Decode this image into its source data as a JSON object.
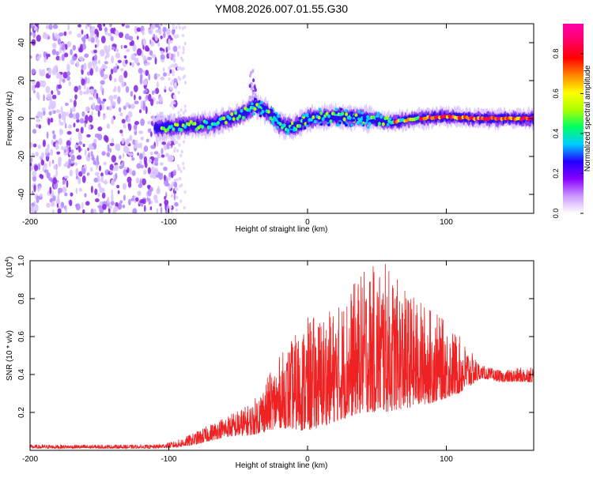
{
  "title": "YM08.2026.007.01.55.G30",
  "chart_data": [
    {
      "type": "heatmap",
      "name": "spectrogram",
      "xlabel": "Height of straight line (km)",
      "ylabel": "Frequency (Hz)",
      "xlim": [
        -200,
        163
      ],
      "ylim": [
        -50,
        50
      ],
      "xticks": [
        "-200",
        "-100",
        "0",
        "100"
      ],
      "xtick_values": [
        -200,
        -100,
        0,
        100
      ],
      "yticks": [
        "40",
        "20",
        "0",
        "-20",
        "-40"
      ],
      "ytick_values": [
        40,
        20,
        0,
        -20,
        -40
      ],
      "colorbar": {
        "label": "Normalized spectral amplitude",
        "range": [
          0,
          0.95
        ],
        "ticks": [
          "0.8",
          "0.6",
          "0.4",
          "0.2",
          "0.0"
        ],
        "tick_values": [
          0.8,
          0.6,
          0.4,
          0.2,
          0.0
        ],
        "colors": [
          "#ffffff",
          "#cc99ff",
          "#8800ff",
          "#2200ff",
          "#00ccff",
          "#00ff66",
          "#aaff00",
          "#ffff00",
          "#ff8800",
          "#ff0000",
          "#ff0066",
          "#ff00aa"
        ]
      },
      "signal_track": {
        "x": [
          -110,
          -90,
          -70,
          -55,
          -45,
          -38,
          -30,
          -20,
          -10,
          0,
          20,
          40,
          60,
          80,
          100,
          120,
          140,
          163
        ],
        "frequency": [
          -5,
          -4,
          -3,
          0,
          3,
          7,
          4,
          -3,
          -5,
          0,
          1,
          0,
          -2,
          0,
          1,
          0,
          0,
          0
        ]
      },
      "noise_region_x": [
        -200,
        -100
      ]
    },
    {
      "type": "line",
      "name": "snr",
      "xlabel": "Height of straight line (km)",
      "ylabel": "SNR (10 * v/v)",
      "scale_label": "(x10",
      "scale_exponent": "4",
      "xlim": [
        -200,
        163
      ],
      "ylim": [
        0,
        1.0
      ],
      "xticks": [
        "-200",
        "-100",
        "0",
        "100"
      ],
      "xtick_values": [
        -200,
        -100,
        0,
        100
      ],
      "yticks": [
        "1.0",
        "0.8",
        "0.6",
        "0.4",
        "0.2"
      ],
      "ytick_values": [
        1.0,
        0.8,
        0.6,
        0.4,
        0.2
      ],
      "color": "#ee2222",
      "envelope": {
        "x": [
          -200,
          -110,
          -95,
          -80,
          -60,
          -40,
          -20,
          0,
          20,
          40,
          55,
          70,
          90,
          110,
          125,
          140,
          163
        ],
        "base": [
          0.01,
          0.01,
          0.015,
          0.03,
          0.07,
          0.08,
          0.12,
          0.1,
          0.15,
          0.2,
          0.2,
          0.22,
          0.25,
          0.3,
          0.38,
          0.36,
          0.36
        ],
        "peak": [
          0.03,
          0.03,
          0.05,
          0.1,
          0.18,
          0.25,
          0.5,
          0.7,
          0.75,
          0.95,
          1.0,
          0.85,
          0.75,
          0.6,
          0.45,
          0.42,
          0.45
        ]
      }
    }
  ]
}
